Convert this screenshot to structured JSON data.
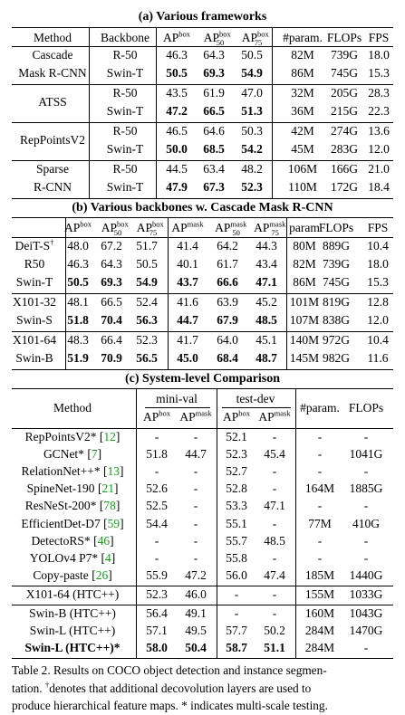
{
  "section_a": {
    "title": "(a) Various frameworks",
    "headers": {
      "method": "Method",
      "backbone": "Backbone",
      "ap": "AP",
      "ap_sup": "box",
      "ap50": "AP",
      "ap50_sup": "box",
      "ap50_sub": "50",
      "ap75": "AP",
      "ap75_sup": "box",
      "ap75_sub": "75",
      "params": "#param.",
      "flops": "FLOPs",
      "fps": "FPS"
    },
    "groups": [
      {
        "method": [
          "Cascade",
          "Mask R-CNN"
        ],
        "rows": [
          {
            "backbone": "R-50",
            "ap": "46.3",
            "ap50": "64.3",
            "ap75": "50.5",
            "params": "82M",
            "flops": "739G",
            "fps": "18.0",
            "bold": false
          },
          {
            "backbone": "Swin-T",
            "ap": "50.5",
            "ap50": "69.3",
            "ap75": "54.9",
            "params": "86M",
            "flops": "745G",
            "fps": "15.3",
            "bold": true
          }
        ]
      },
      {
        "method": [
          "ATSS"
        ],
        "rows": [
          {
            "backbone": "R-50",
            "ap": "43.5",
            "ap50": "61.9",
            "ap75": "47.0",
            "params": "32M",
            "flops": "205G",
            "fps": "28.3",
            "bold": false
          },
          {
            "backbone": "Swin-T",
            "ap": "47.2",
            "ap50": "66.5",
            "ap75": "51.3",
            "params": "36M",
            "flops": "215G",
            "fps": "22.3",
            "bold": true
          }
        ]
      },
      {
        "method": [
          "RepPointsV2"
        ],
        "rows": [
          {
            "backbone": "R-50",
            "ap": "46.5",
            "ap50": "64.6",
            "ap75": "50.3",
            "params": "42M",
            "flops": "274G",
            "fps": "13.6",
            "bold": false
          },
          {
            "backbone": "Swin-T",
            "ap": "50.0",
            "ap50": "68.5",
            "ap75": "54.2",
            "params": "45M",
            "flops": "283G",
            "fps": "12.0",
            "bold": true
          }
        ]
      },
      {
        "method": [
          "Sparse",
          "R-CNN"
        ],
        "rows": [
          {
            "backbone": "R-50",
            "ap": "44.5",
            "ap50": "63.4",
            "ap75": "48.2",
            "params": "106M",
            "flops": "166G",
            "fps": "21.0",
            "bold": false
          },
          {
            "backbone": "Swin-T",
            "ap": "47.9",
            "ap50": "67.3",
            "ap75": "52.3",
            "params": "110M",
            "flops": "172G",
            "fps": "18.4",
            "bold": true
          }
        ]
      }
    ]
  },
  "section_b": {
    "title": "(b) Various backbones w. Cascade Mask R-CNN",
    "headers": {
      "ap": "AP",
      "box": "box",
      "mask": "mask",
      "sub50": "50",
      "sub75": "75",
      "params": "param",
      "flops": "FLOPs",
      "fps": "FPS"
    },
    "groups": [
      [
        {
          "name": "DeiT-S",
          "dagger": "†",
          "v": [
            "48.0",
            "67.2",
            "51.7",
            "41.4",
            "64.2",
            "44.3",
            "80M",
            "889G",
            "10.4"
          ],
          "bold": false
        },
        {
          "name": "R50",
          "v": [
            "46.3",
            "64.3",
            "50.5",
            "40.1",
            "61.7",
            "43.4",
            "82M",
            "739G",
            "18.0"
          ],
          "bold": false
        },
        {
          "name": "Swin-T",
          "v": [
            "50.5",
            "69.3",
            "54.9",
            "43.7",
            "66.6",
            "47.1",
            "86M",
            "745G",
            "15.3"
          ],
          "bold": true
        }
      ],
      [
        {
          "name": "X101-32",
          "v": [
            "48.1",
            "66.5",
            "52.4",
            "41.6",
            "63.9",
            "45.2",
            "101M",
            "819G",
            "12.8"
          ],
          "bold": false
        },
        {
          "name": "Swin-S",
          "v": [
            "51.8",
            "70.4",
            "56.3",
            "44.7",
            "67.9",
            "48.5",
            "107M",
            "838G",
            "12.0"
          ],
          "bold": true
        }
      ],
      [
        {
          "name": "X101-64",
          "v": [
            "48.3",
            "66.4",
            "52.3",
            "41.7",
            "64.0",
            "45.1",
            "140M",
            "972G",
            "10.4"
          ],
          "bold": false
        },
        {
          "name": "Swin-B",
          "v": [
            "51.9",
            "70.9",
            "56.5",
            "45.0",
            "68.4",
            "48.7",
            "145M",
            "982G",
            "11.6"
          ],
          "bold": true
        }
      ]
    ]
  },
  "section_c": {
    "title": "(c) System-level Comparison",
    "headers": {
      "method": "Method",
      "minival": "mini-val",
      "testdev": "test-dev",
      "ap": "AP",
      "box": "box",
      "mask": "mask",
      "params": "#param.",
      "flops": "FLOPs"
    },
    "groups": [
      [
        {
          "name": "RepPointsV2*",
          "cite": "12",
          "v": [
            "-",
            "-",
            "52.1",
            "-",
            "-",
            "-"
          ],
          "bold": false
        },
        {
          "name": "GCNet*",
          "cite": "7",
          "v": [
            "51.8",
            "44.7",
            "52.3",
            "45.4",
            "-",
            "1041G"
          ],
          "bold": false
        },
        {
          "name": "RelationNet++*",
          "cite": "13",
          "v": [
            "-",
            "-",
            "52.7",
            "-",
            "-",
            "-"
          ],
          "bold": false
        },
        {
          "name": "SpineNet-190",
          "cite": "21",
          "v": [
            "52.6",
            "-",
            "52.8",
            "-",
            "164M",
            "1885G"
          ],
          "bold": false
        },
        {
          "name": "ResNeSt-200*",
          "cite": "78",
          "v": [
            "52.5",
            "-",
            "53.3",
            "47.1",
            "-",
            "-"
          ],
          "bold": false
        },
        {
          "name": "EfficientDet-D7",
          "cite": "59",
          "v": [
            "54.4",
            "-",
            "55.1",
            "-",
            "77M",
            "410G"
          ],
          "bold": false
        },
        {
          "name": "DetectoRS*",
          "cite": "46",
          "v": [
            "-",
            "-",
            "55.7",
            "48.5",
            "-",
            "-"
          ],
          "bold": false
        },
        {
          "name": "YOLOv4 P7*",
          "cite": "4",
          "v": [
            "-",
            "-",
            "55.8",
            "-",
            "-",
            "-"
          ],
          "bold": false
        },
        {
          "name": "Copy-paste",
          "cite": "26",
          "v": [
            "55.9",
            "47.2",
            "56.0",
            "47.4",
            "185M",
            "1440G"
          ],
          "bold": false
        }
      ],
      [
        {
          "name": "X101-64 (HTC++)",
          "v": [
            "52.3",
            "46.0",
            "-",
            "-",
            "155M",
            "1033G"
          ],
          "bold": false
        }
      ],
      [
        {
          "name": "Swin-B (HTC++)",
          "v": [
            "56.4",
            "49.1",
            "-",
            "-",
            "160M",
            "1043G"
          ],
          "bold": false
        },
        {
          "name": "Swin-L (HTC++)",
          "v": [
            "57.1",
            "49.5",
            "57.7",
            "50.2",
            "284M",
            "1470G"
          ],
          "bold": false
        },
        {
          "name": "Swin-L (HTC++)*",
          "v": [
            "58.0",
            "50.4",
            "58.7",
            "51.1",
            "284M",
            "-"
          ],
          "bold": true
        }
      ]
    ]
  },
  "caption": {
    "line1": "Table 2. Results on COCO object detection and instance segmen-",
    "line2_pre": "tation. ",
    "line2_dagger": "†",
    "line2_post": "denotes that additional decovolution layers are used to",
    "line3": "produce hierarchical feature maps. * indicates multi-scale testing."
  }
}
